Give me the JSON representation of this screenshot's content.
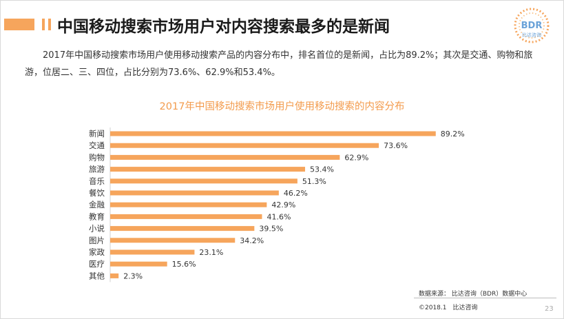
{
  "header": {
    "title": "中国移动搜索市场用户对内容搜索最多的是新闻"
  },
  "logo": {
    "text": "BDR",
    "sub": "比达咨询"
  },
  "intro": "2017年中国移动搜索市场用户使用移动搜索产品的内容分布中，排名首位的是新闻，占比为89.2%；其次是交通、购物和旅游，位居二、三、四位，占比分别为73.6%、62.9%和53.4%。",
  "chart_data": {
    "type": "bar",
    "orientation": "horizontal",
    "title": "2017年中国移动搜索市场用户使用移动搜索的内容分布",
    "categories": [
      "新闻",
      "交通",
      "购物",
      "旅游",
      "音乐",
      "餐饮",
      "金融",
      "教育",
      "小说",
      "图片",
      "家政",
      "医疗",
      "其他"
    ],
    "values": [
      89.2,
      73.6,
      62.9,
      53.4,
      51.3,
      46.2,
      42.9,
      41.6,
      39.5,
      34.2,
      23.1,
      15.6,
      2.3
    ],
    "value_labels": [
      "89.2%",
      "73.6%",
      "62.9%",
      "53.4%",
      "51.3%",
      "46.2%",
      "42.9%",
      "41.6%",
      "39.5%",
      "34.2%",
      "23.1%",
      "15.6%",
      "2.3%"
    ],
    "unit": "%",
    "xlim": [
      0,
      100
    ],
    "bar_color": "#f6a55c",
    "grid": false,
    "legend": "none"
  },
  "footer": {
    "source": "数据来源： 比达咨询（BDR）数据中心",
    "copyright": "©2018.1　比达咨询",
    "page": "23"
  }
}
